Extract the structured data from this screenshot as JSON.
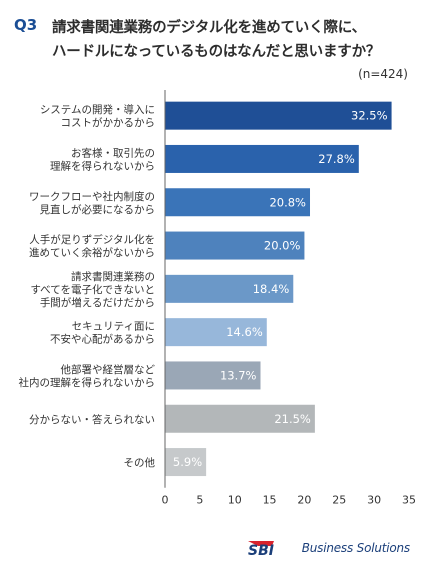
{
  "header": {
    "q_label": "Q3",
    "title_line_1": "請求書関連業務のデジタル化を進めていく際に、",
    "title_line_2": "ハードルになっているものはなんだと思いますか？",
    "sample_size": "(n=424)"
  },
  "chart_data": {
    "type": "bar",
    "orientation": "horizontal",
    "categories": [
      [
        "システムの開発・導入に",
        "コストがかかるから"
      ],
      [
        "お客様・取引先の",
        "理解を得られないから"
      ],
      [
        "ワークフローや社内制度の",
        "見直しが必要になるから"
      ],
      [
        "人手が足りずデジタル化を",
        "進めていく余裕がないから"
      ],
      [
        "請求書関連業務の",
        "すべてを電子化できないと",
        "手間が増えるだけだから"
      ],
      [
        "セキュリティ面に",
        "不安や心配があるから"
      ],
      [
        "他部署や経営層など",
        "社内の理解を得られないから"
      ],
      [
        "分からない・答えられない"
      ],
      [
        "その他"
      ]
    ],
    "values": [
      32.5,
      27.8,
      20.8,
      20.0,
      18.4,
      14.6,
      13.7,
      21.5,
      5.9
    ],
    "value_labels": [
      "32.5%",
      "27.8%",
      "20.8%",
      "20.0%",
      "18.4%",
      "14.6%",
      "13.7%",
      "21.5%",
      "5.9%"
    ],
    "bar_colors": [
      "#1f4f96",
      "#2a62ac",
      "#3a74b8",
      "#4e82bd",
      "#6b98c8",
      "#97b7da",
      "#9aa7b6",
      "#b3b7b9",
      "#c6c9cb"
    ],
    "x_ticks": [
      0,
      5,
      10,
      15,
      20,
      25,
      30,
      35
    ],
    "xlim": [
      0,
      35
    ],
    "grid": false
  },
  "brand": {
    "logo_text": "SBI",
    "text": "Business Solutions"
  }
}
